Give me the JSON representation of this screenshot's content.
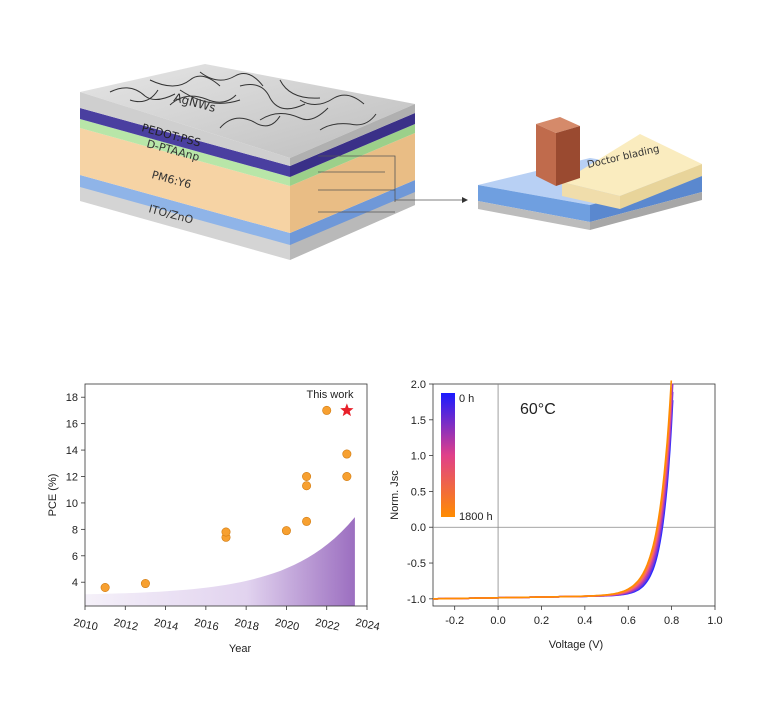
{
  "device_stack": {
    "layers": [
      "AgNWs",
      "PEDOT:PSS",
      "D-PTAAnp",
      "PM6:Y6",
      "ITO/ZnO"
    ]
  },
  "process": {
    "label": "Doctor blading"
  },
  "chart_data": [
    {
      "type": "scatter",
      "xlabel": "Year",
      "ylabel": "PCE (%)",
      "xlim": [
        2010,
        2024
      ],
      "ylim": [
        2.2,
        19
      ],
      "xticks": [
        "2010",
        "2012",
        "2014",
        "2016",
        "2018",
        "2020",
        "2022",
        "2024"
      ],
      "yticks": [
        "4",
        "6",
        "8",
        "10",
        "12",
        "14",
        "16",
        "18"
      ],
      "points": [
        {
          "x": 2011,
          "y": 3.6
        },
        {
          "x": 2013,
          "y": 3.9
        },
        {
          "x": 2017,
          "y": 7.4
        },
        {
          "x": 2017,
          "y": 7.8
        },
        {
          "x": 2020,
          "y": 7.9
        },
        {
          "x": 2021,
          "y": 8.6
        },
        {
          "x": 2021,
          "y": 11.3
        },
        {
          "x": 2021,
          "y": 12.0
        },
        {
          "x": 2022,
          "y": 17.0
        },
        {
          "x": 2023,
          "y": 12.0
        },
        {
          "x": 2023,
          "y": 13.7
        }
      ],
      "highlight": {
        "x": 2023,
        "y": 17.0,
        "label": "This work",
        "color": "#e8202a"
      },
      "point_color": "#f7a030"
    },
    {
      "type": "line",
      "xlabel": "Voltage (V)",
      "ylabel": "Norm. Jsc",
      "xlim": [
        -0.3,
        1.0
      ],
      "ylim": [
        -1.1,
        2.0
      ],
      "xticks": [
        "-0.2",
        "0.0",
        "0.2",
        "0.4",
        "0.6",
        "0.8",
        "1.0"
      ],
      "yticks": [
        "-1.0",
        "-0.5",
        "0.0",
        "0.5",
        "1.0",
        "1.5",
        "2.0"
      ],
      "annotation": "60°C",
      "colorbar": {
        "top_label": "0 h",
        "bottom_label": "1800 h",
        "top_color": "#1a1aff",
        "bottom_color": "#ff8c00"
      }
    }
  ]
}
